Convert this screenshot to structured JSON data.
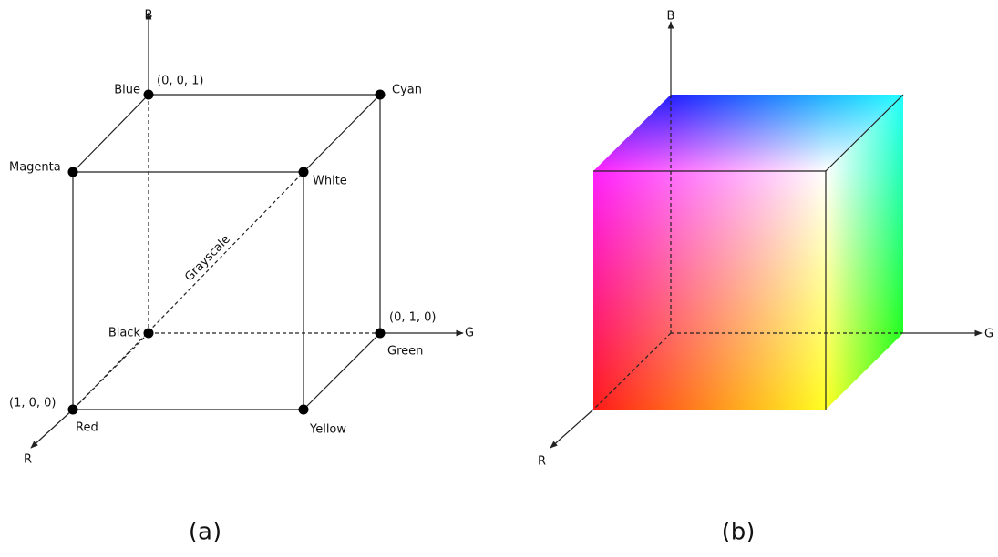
{
  "left": {
    "axes": {
      "b": "B",
      "g": "G",
      "r": "R"
    },
    "vertices": {
      "blue": "Blue",
      "cyan": "Cyan",
      "magenta": "Magenta",
      "white": "White",
      "black": "Black",
      "green": "Green",
      "red": "Red",
      "yellow": "Yellow"
    },
    "coordinates": {
      "blue": "(0, 0, 1)",
      "green": "(0, 1, 0)",
      "red": "(1, 0, 0)"
    },
    "diagonal_label": "Grayscale",
    "caption": "(a)"
  },
  "right": {
    "axes": {
      "b": "B",
      "g": "G",
      "r": "R"
    },
    "caption": "(b)"
  }
}
